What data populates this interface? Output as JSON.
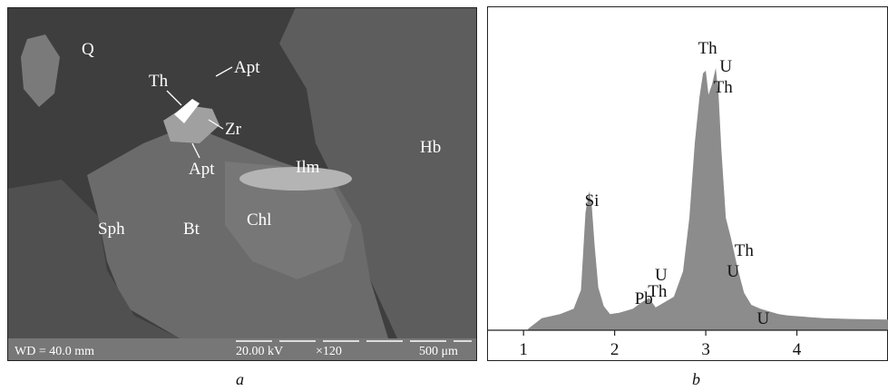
{
  "figure": {
    "panel_a": {
      "caption": "a",
      "mineral_labels": [
        "Q",
        "Th",
        "Apt",
        "Zr",
        "Apt",
        "Ilm",
        "Hb",
        "Sph",
        "Bt",
        "Chl"
      ],
      "footer": {
        "wd": "WD = 40.0 mm",
        "kv": "20.00 kV",
        "mag": "×120",
        "scale": "500 μm"
      }
    },
    "panel_b": {
      "caption": "b"
    }
  },
  "chart_data": {
    "type": "area",
    "title": "",
    "xlabel": "",
    "ylabel": "",
    "xlim": [
      0.6,
      5.0
    ],
    "x_ticks": [
      1,
      2,
      3,
      4
    ],
    "x_tick_labels": [
      "1",
      "2",
      "3",
      "4"
    ],
    "grid": false,
    "colors": {
      "fill": "#8c8c8c",
      "axis": "#222222"
    },
    "series": [
      {
        "x": [
          1.05,
          1.2,
          1.4,
          1.55,
          1.63,
          1.68,
          1.72,
          1.75,
          1.78,
          1.82,
          1.88,
          1.95,
          2.05,
          2.2,
          2.3,
          2.38,
          2.45,
          2.55,
          2.65,
          2.75,
          2.82,
          2.88,
          2.93,
          2.97,
          3.0,
          3.03,
          3.07,
          3.11,
          3.14,
          3.17,
          3.22,
          3.28,
          3.35,
          3.42,
          3.5,
          3.6,
          3.7,
          3.8,
          3.9,
          4.1,
          4.3,
          4.6,
          5.0
        ],
        "y": [
          0.5,
          4.5,
          6,
          8,
          15,
          44,
          52,
          46,
          32,
          16,
          9,
          6,
          6.5,
          8,
          10.5,
          12,
          8.5,
          10.5,
          12.5,
          22,
          42,
          70,
          87,
          96,
          97,
          88,
          92,
          98,
          88,
          68,
          42,
          34,
          23,
          14,
          9.5,
          8,
          7,
          6,
          5.5,
          5,
          4.5,
          4.2,
          4
        ]
      }
    ],
    "annotations": [
      {
        "text": "Si",
        "x": 1.75
      },
      {
        "text": "Pb",
        "x": 2.32
      },
      {
        "text": "U",
        "x": 2.51
      },
      {
        "text": "Th",
        "x": 2.47
      },
      {
        "text": "Th",
        "x": 3.02
      },
      {
        "text": "U",
        "x": 3.22
      },
      {
        "text": "Th",
        "x": 3.19
      },
      {
        "text": "Th",
        "x": 3.42
      },
      {
        "text": "U",
        "x": 3.3
      },
      {
        "text": "U",
        "x": 3.63
      }
    ]
  }
}
